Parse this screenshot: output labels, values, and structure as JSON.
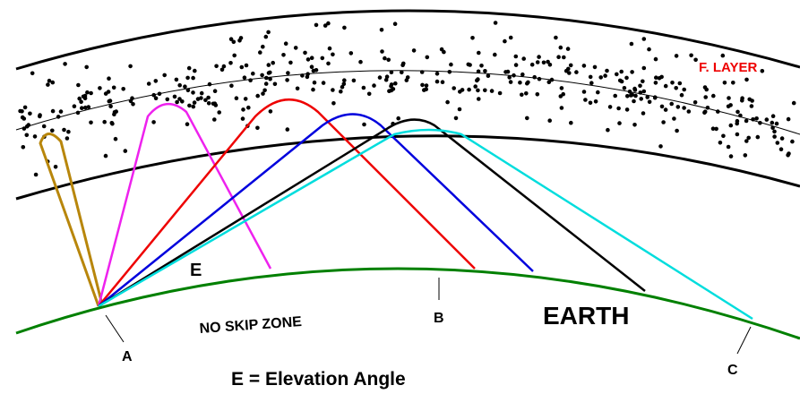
{
  "labels": {
    "f_layer": "F. LAYER",
    "elevation": "E",
    "no_skip_zone": "NO SKIP ZONE",
    "b": "B",
    "earth": "EARTH",
    "a": "A",
    "c": "C",
    "caption": "E = Elevation Angle"
  }
}
